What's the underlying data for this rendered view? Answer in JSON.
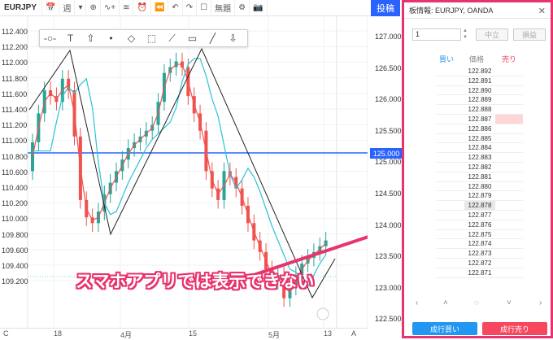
{
  "toolbar": {
    "symbol": "EURJPY",
    "calendar_icon": "📅",
    "interval": "週",
    "chevron": "▾",
    "add": "⊕",
    "indicators": "∿+",
    "templates": "≋",
    "alert": "⏰",
    "replay": "⏪",
    "undo": "↶",
    "redo": "↷",
    "layout": "☐",
    "cloud_label": "無題",
    "settings": "⚙",
    "camera": "📷",
    "order": "投稿"
  },
  "drawing_tools": [
    "-○-",
    "T",
    "⇧",
    "•",
    "◇",
    "⬚",
    "⟋",
    "▭",
    "╱",
    "⇩"
  ],
  "left_axis": [
    "112.400",
    "112.200",
    "112.000",
    "111.800",
    "111.600",
    "111.400",
    "111.200",
    "111.000",
    "110.800",
    "110.600",
    "110.400",
    "110.200",
    "110.000",
    "109.800",
    "109.600",
    "109.400",
    "109.200"
  ],
  "right_axis": [
    "127.000",
    "126.500",
    "126.000",
    "125.500",
    "125.000",
    "124.500",
    "124.000",
    "123.500",
    "123.000",
    "122.500"
  ],
  "right_axis_hidden": "124.000",
  "current_price": "125.000",
  "x_axis": [
    "C",
    "18",
    "4月",
    "15",
    "5月",
    "13",
    "A"
  ],
  "callout": "スマホアプリでは表示できない",
  "chart_data": {
    "type": "candlestick",
    "series": [
      {
        "name": "",
        "x": [
          1,
          2,
          3,
          4,
          5,
          6,
          7,
          8,
          9,
          10,
          11,
          12,
          13,
          14,
          15,
          16,
          17,
          18,
          19,
          20,
          21,
          22,
          23,
          24,
          25,
          26,
          27,
          28,
          29,
          30,
          31,
          32,
          33,
          34,
          35,
          36,
          37,
          38,
          39,
          40,
          41,
          42,
          43,
          44,
          45,
          46,
          47,
          48,
          49,
          50
        ],
        "open": [
          124.8,
          125.3,
          125.8,
          126.2,
          126.1,
          126.0,
          126.4,
          126.2,
          125.4,
          124.3,
          124.0,
          123.9,
          124.1,
          124.4,
          124.6,
          124.8,
          125.0,
          125.2,
          125.3,
          125.4,
          125.5,
          125.6,
          126.0,
          126.5,
          126.6,
          126.7,
          126.6,
          126.1,
          125.8,
          125.5,
          124.8,
          124.5,
          124.3,
          124.8,
          124.7,
          124.5,
          124.2,
          123.9,
          123.6,
          123.4,
          123.1,
          122.9,
          123.0,
          122.6,
          122.8,
          123.0,
          123.2,
          123.3,
          123.4,
          123.5
        ],
        "close": [
          125.3,
          125.8,
          126.2,
          126.1,
          126.0,
          126.4,
          126.2,
          125.4,
          124.3,
          124.0,
          123.9,
          124.1,
          124.4,
          124.6,
          124.8,
          125.0,
          125.2,
          125.3,
          125.4,
          125.5,
          125.6,
          126.0,
          126.5,
          126.6,
          126.7,
          126.6,
          126.1,
          125.8,
          125.5,
          124.8,
          124.5,
          124.3,
          124.8,
          124.7,
          124.5,
          124.2,
          123.9,
          123.6,
          123.4,
          123.1,
          122.9,
          123.0,
          122.6,
          122.8,
          123.0,
          123.2,
          123.3,
          123.4,
          123.5,
          123.6
        ]
      }
    ]
  },
  "panel": {
    "title": "板情報: EURJPY, OANDA",
    "close": "✕",
    "quantity": "1",
    "flat_label": "中立",
    "settle_label": "損益",
    "buy_header": "買い",
    "price_header": "価格",
    "sell_header": "売り",
    "prices": [
      "122.892",
      "122.891",
      "122.890",
      "122.889",
      "122.888",
      "122.887",
      "122.886",
      "122.885",
      "122.884",
      "122.883",
      "122.882",
      "122.881",
      "122.880",
      "122.879",
      "122.878",
      "122.877",
      "122.876",
      "122.875",
      "122.874",
      "122.873",
      "122.872",
      "122.871"
    ],
    "nav_left": "‹",
    "nav_up": "˄",
    "nav_center": "◌",
    "nav_down": "˅",
    "nav_right": "›",
    "buy_button": "成行買い",
    "sell_button": "成行売り"
  },
  "colors": {
    "accent": "#2962ff",
    "bull": "#26a69a",
    "bear": "#ef5350",
    "highlight": "#e8336d",
    "cyan": "#29c4d4"
  }
}
